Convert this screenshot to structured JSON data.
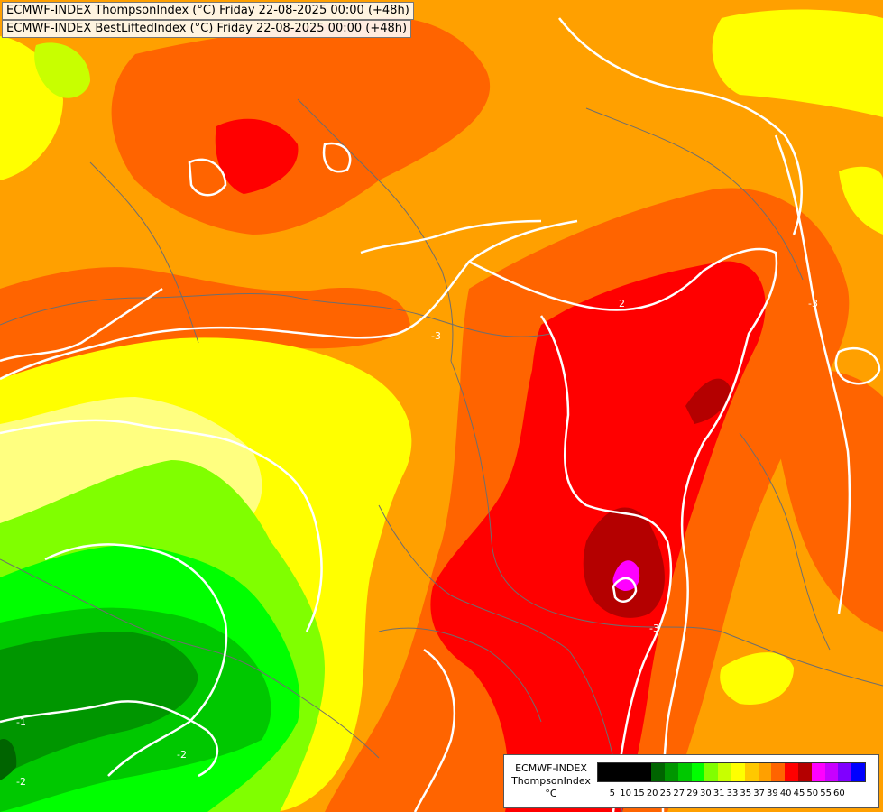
{
  "titles": {
    "line1": "ECMWF-INDEX ThompsonIndex (°C) Friday 22-08-2025 00:00 (+48h)",
    "line2": "ECMWF-INDEX BestLiftedIndex (°C) Friday 22-08-2025 00:00 (+48h)"
  },
  "legend": {
    "model": "ECMWF-INDEX",
    "parameter": "ThompsonIndex",
    "unit": "°C",
    "levels": [
      "5",
      "10",
      "15",
      "20",
      "25",
      "27",
      "29",
      "30",
      "31",
      "33",
      "35",
      "37",
      "39",
      "40",
      "45",
      "50",
      "55",
      "60"
    ],
    "colors": [
      "#000000",
      "#000000",
      "#000000",
      "#000000",
      "#006400",
      "#009600",
      "#00c800",
      "#00ff00",
      "#80ff00",
      "#c8ff00",
      "#ffff00",
      "#ffc800",
      "#ffa000",
      "#ff6400",
      "#ff0000",
      "#b40000",
      "#ff00ff",
      "#c800ff",
      "#8000ff",
      "#0000ff"
    ]
  },
  "contour_labels": [
    "2",
    "-3",
    "-3",
    "-1",
    "-2",
    "-2",
    "-3"
  ],
  "colors": {
    "contour": "#ffffff",
    "borders": "#777777"
  }
}
